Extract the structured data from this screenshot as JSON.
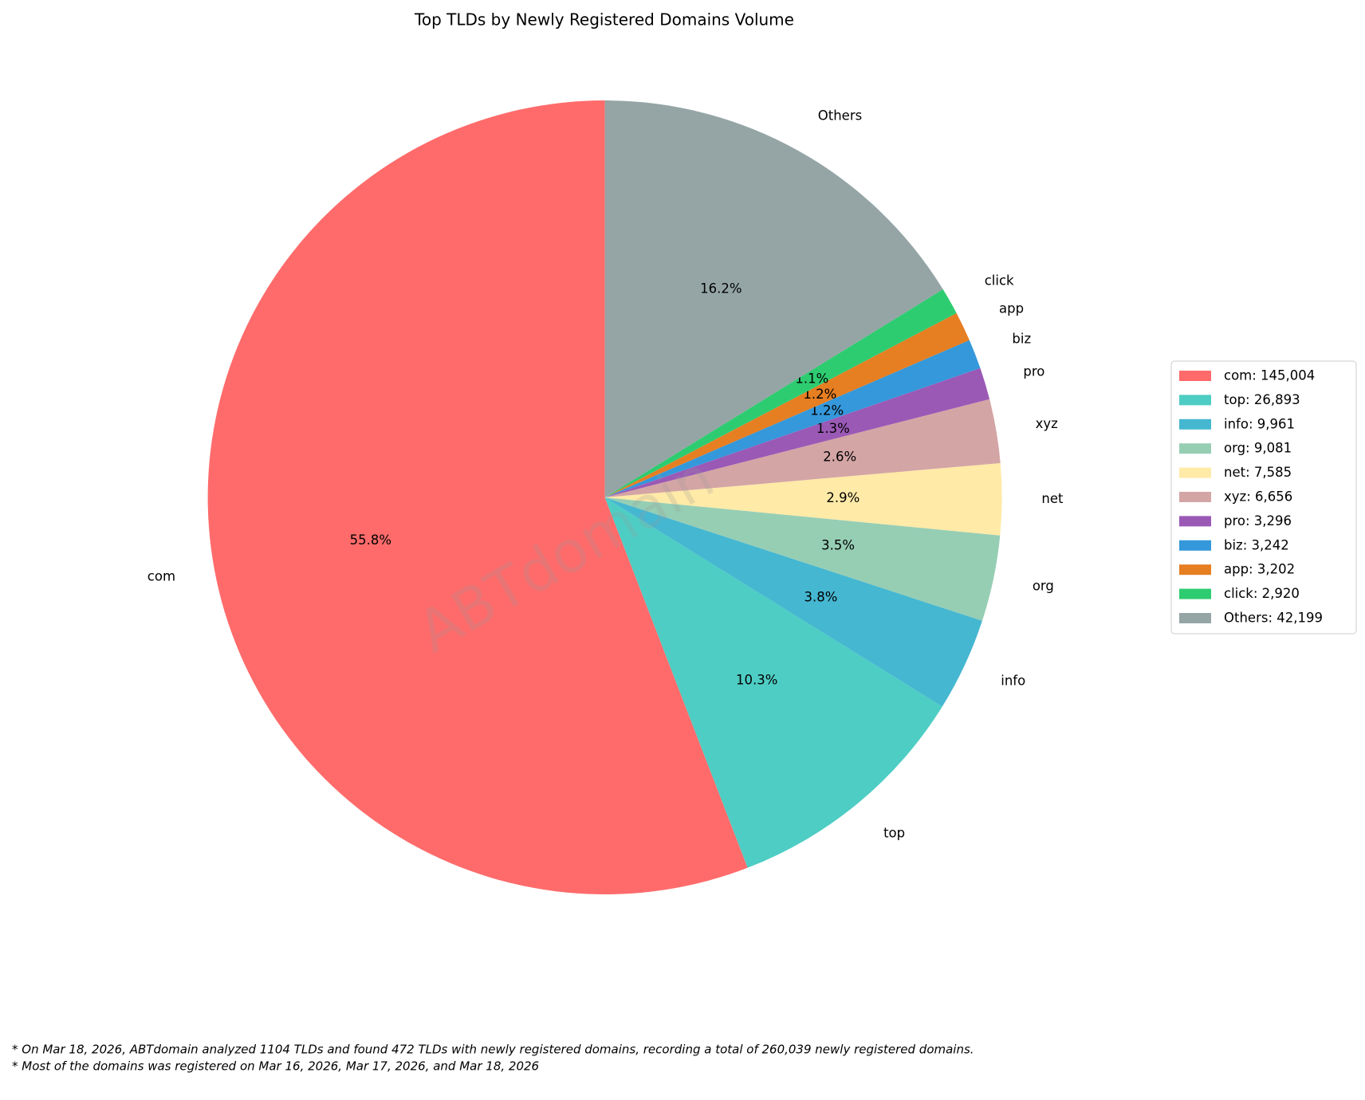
{
  "chart_data": {
    "type": "pie",
    "title": "Top TLDs by Newly Registered Domains Volume",
    "categories": [
      "com",
      "top",
      "info",
      "org",
      "net",
      "xyz",
      "pro",
      "biz",
      "app",
      "click",
      "Others"
    ],
    "values": [
      55.8,
      10.3,
      3.8,
      3.5,
      2.9,
      2.6,
      1.3,
      1.2,
      1.2,
      1.1,
      16.2
    ],
    "value_labels": [
      "55.8%",
      "10.3%",
      "3.8%",
      "3.5%",
      "2.9%",
      "2.6%",
      "1.3%",
      "1.2%",
      "1.2%",
      "1.1%",
      "16.2%"
    ],
    "colors": [
      "#ff6b6b",
      "#4ecdc4",
      "#45b7d1",
      "#96ceb4",
      "#ffeaa7",
      "#d4a5a5",
      "#9b59b6",
      "#3498db",
      "#e67e22",
      "#2ecc71",
      "#95a5a6"
    ],
    "legend_labels": [
      "com: 145,004",
      "top: 26,893",
      "info: 9,961",
      "org: 9,081",
      "net: 7,585",
      "xyz: 6,656",
      "pro: 3,296",
      "biz: 3,242",
      "app: 3,202",
      "click: 2,920",
      "Others: 42,199"
    ],
    "legend_position": "right",
    "watermark": "ABTdomain",
    "footnotes": [
      "* On Mar 18, 2026, ABTdomain analyzed 1104 TLDs and found 472 TLDs with newly registered domains, recording a total of 260,039 newly registered domains.",
      "* Most of the domains was registered on Mar 16, 2026, Mar 17, 2026, and Mar 18, 2026"
    ]
  }
}
